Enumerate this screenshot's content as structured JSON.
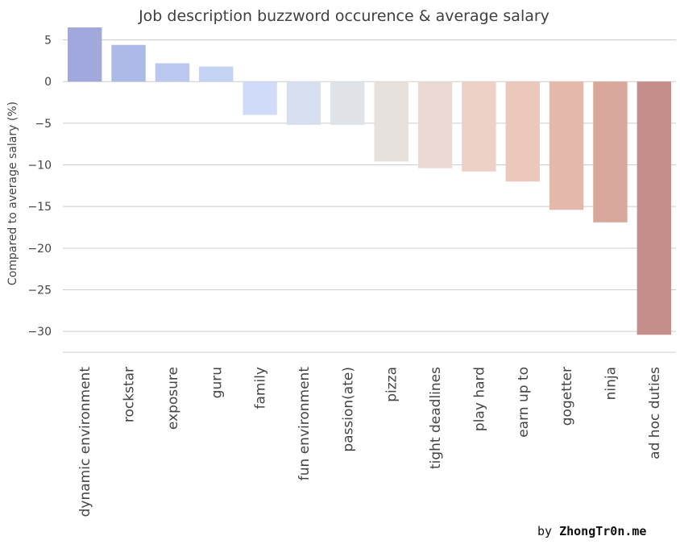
{
  "credit": {
    "prefix": "by",
    "site": "ZhongTr0n.me"
  },
  "chart_data": {
    "type": "bar",
    "title": "Job description buzzword occurence & average salary",
    "xlabel": "",
    "ylabel": "Compared to average salary (%)",
    "ylim": [
      -32.5,
      6.6
    ],
    "yticks": [
      5,
      0,
      -5,
      -10,
      -15,
      -20,
      -25,
      -30
    ],
    "grid": true,
    "categories": [
      "dynamic environment",
      "rockstar",
      "exposure",
      "guru",
      "family",
      "fun environment",
      "passion(ate)",
      "pizza",
      "tight deadlines",
      "play hard",
      "earn up to",
      "gogetter",
      "ninja",
      "ad hoc duties"
    ],
    "values": [
      6.5,
      4.4,
      2.2,
      1.8,
      -4.0,
      -5.2,
      -5.2,
      -9.6,
      -10.4,
      -10.8,
      -12.0,
      -15.4,
      -16.9,
      -30.4
    ],
    "colors": [
      "#a0a8dc",
      "#adb9e6",
      "#bac8f0",
      "#c4d2f4",
      "#d0dbf7",
      "#d7e0f1",
      "#dfe2e6",
      "#e6e1dc",
      "#ebdad3",
      "#edd1c7",
      "#ebc8bb",
      "#e4b8ab",
      "#d9a89c",
      "#c48e8a"
    ]
  }
}
